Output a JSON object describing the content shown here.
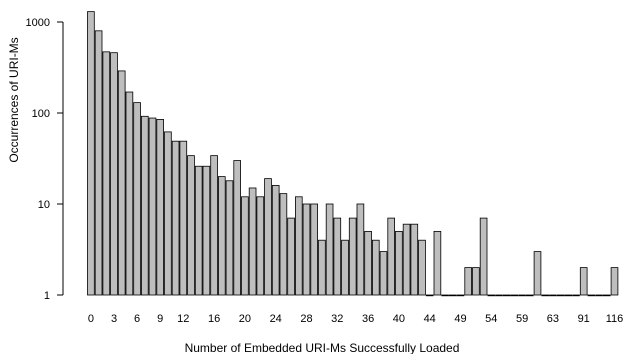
{
  "chart_data": {
    "type": "bar",
    "title": "",
    "xlabel": "Number of Embedded URI-Ms Successfully Loaded",
    "ylabel": "Occurrences of URI-Ms",
    "yscale": "log",
    "ylim": [
      1,
      1300
    ],
    "y_ticks": [
      1,
      10,
      100,
      1000
    ],
    "y_tick_labels": [
      "1",
      "10",
      "100",
      "1000"
    ],
    "x_tick_labels": [
      "0",
      "3",
      "6",
      "9",
      "12",
      "16",
      "20",
      "24",
      "28",
      "32",
      "36",
      "40",
      "44",
      "49",
      "54",
      "59",
      "63",
      "91",
      "116"
    ],
    "x_tick_label_bar_index": [
      0,
      3,
      6,
      9,
      12,
      16,
      20,
      24,
      28,
      32,
      36,
      40,
      44,
      48,
      52,
      56,
      60,
      64,
      68
    ],
    "bar_color": "#bebebe",
    "edge_color": "#000000",
    "grid": false,
    "legend": "none",
    "values": [
      1300,
      800,
      470,
      460,
      290,
      170,
      130,
      92,
      88,
      85,
      62,
      49,
      49,
      34,
      26,
      26,
      34,
      20,
      18,
      30,
      12,
      15,
      12,
      19,
      16,
      13,
      7,
      12,
      10,
      10,
      4,
      10,
      7,
      4,
      7,
      10,
      5,
      4,
      3,
      7,
      5,
      6,
      6,
      4,
      1,
      5,
      1,
      1,
      1,
      2,
      2,
      7,
      1,
      1,
      1,
      1,
      1,
      1,
      3,
      1,
      1,
      1,
      1,
      1,
      2,
      1,
      1,
      1,
      2
    ]
  }
}
